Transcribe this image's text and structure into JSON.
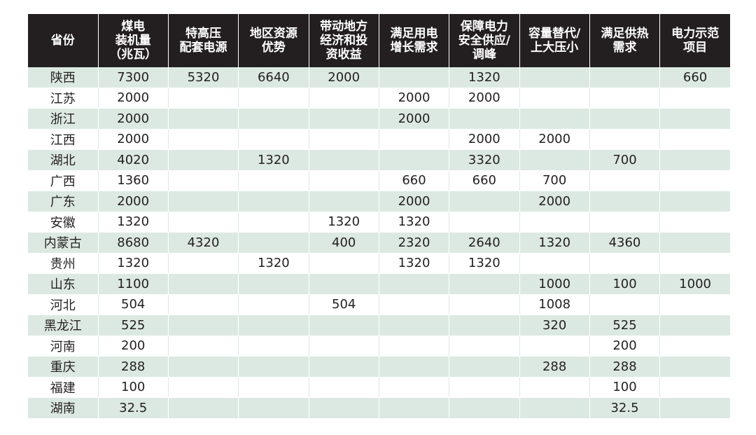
{
  "table": {
    "headers": [
      "省份",
      "煤电装机量（兆瓦）",
      "特高压配套电源",
      "地区资源优势",
      "带动地方经济和投资收益",
      "满足用电增长需求",
      "保障电力安全供应/调峰",
      "容量替代/上大压小",
      "满足供热需求",
      "电力示范项目"
    ],
    "header_lines": [
      [
        "省份"
      ],
      [
        "煤电",
        "装机量",
        "（兆瓦）"
      ],
      [
        "特高压",
        "配套电源"
      ],
      [
        "地区资源",
        "优势"
      ],
      [
        "带动地方",
        "经济和投",
        "资收益"
      ],
      [
        "满足用电",
        "增长需求"
      ],
      [
        "保障电力",
        "安全供应/",
        "调峰"
      ],
      [
        "容量替代/",
        "上大压小"
      ],
      [
        "满足供热",
        "需求"
      ],
      [
        "电力示范",
        "项目"
      ]
    ],
    "rows": [
      [
        "陕西",
        "7300",
        "5320",
        "6640",
        "2000",
        "",
        "1320",
        "",
        "",
        "660"
      ],
      [
        "江苏",
        "2000",
        "",
        "",
        "",
        "2000",
        "2000",
        "",
        "",
        ""
      ],
      [
        "浙江",
        "2000",
        "",
        "",
        "",
        "2000",
        "",
        "",
        "",
        ""
      ],
      [
        "江西",
        "2000",
        "",
        "",
        "",
        "",
        "2000",
        "2000",
        "",
        ""
      ],
      [
        "湖北",
        "4020",
        "",
        "1320",
        "",
        "",
        "3320",
        "",
        "700",
        ""
      ],
      [
        "广西",
        "1360",
        "",
        "",
        "",
        "660",
        "660",
        "700",
        "",
        ""
      ],
      [
        "广东",
        "2000",
        "",
        "",
        "",
        "2000",
        "",
        "2000",
        "",
        ""
      ],
      [
        "安徽",
        "1320",
        "",
        "",
        "1320",
        "1320",
        "",
        "",
        "",
        ""
      ],
      [
        "内蒙古",
        "8680",
        "4320",
        "",
        "400",
        "2320",
        "2640",
        "1320",
        "4360",
        ""
      ],
      [
        "贵州",
        "1320",
        "",
        "1320",
        "",
        "1320",
        "1320",
        "",
        "",
        ""
      ],
      [
        "山东",
        "1100",
        "",
        "",
        "",
        "",
        "",
        "1000",
        "100",
        "1000"
      ],
      [
        "河北",
        "504",
        "",
        "",
        "504",
        "",
        "",
        "1008",
        "",
        ""
      ],
      [
        "黑龙江",
        "525",
        "",
        "",
        "",
        "",
        "",
        "320",
        "525",
        ""
      ],
      [
        "河南",
        "200",
        "",
        "",
        "",
        "",
        "",
        "",
        "200",
        ""
      ],
      [
        "重庆",
        "288",
        "",
        "",
        "",
        "",
        "",
        "288",
        "288",
        ""
      ],
      [
        "福建",
        "100",
        "",
        "",
        "",
        "",
        "",
        "",
        "100",
        ""
      ],
      [
        "湖南",
        "32.5",
        "",
        "",
        "",
        "",
        "",
        "",
        "32.5",
        ""
      ]
    ]
  },
  "colors": {
    "header_bg": "#231f20",
    "header_text": "#ffffff",
    "stripe": "#dce9e2",
    "body_text": "#231f20"
  }
}
